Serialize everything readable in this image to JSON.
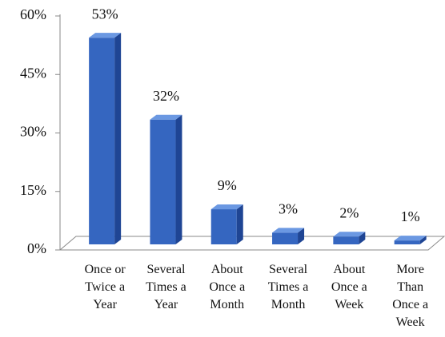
{
  "chart_data": {
    "type": "bar",
    "categories": [
      [
        "Once or",
        "Twice a",
        "Year"
      ],
      [
        "Several",
        "Times a",
        "Year"
      ],
      [
        "About",
        "Once a",
        "Month"
      ],
      [
        "Several",
        "Times a",
        "Month"
      ],
      [
        "About",
        "Once a",
        "Week"
      ],
      [
        "More",
        "Than",
        "Once a",
        "Week"
      ]
    ],
    "values": [
      53,
      32,
      9,
      3,
      2,
      1
    ],
    "value_labels": [
      "53%",
      "32%",
      "9%",
      "3%",
      "2%",
      "1%"
    ],
    "color": "#3566c0",
    "ylim": [
      0,
      60
    ],
    "yticks": [
      {
        "value": 0,
        "label": "0%"
      },
      {
        "value": 15,
        "label": "15%"
      },
      {
        "value": 30,
        "label": "30%"
      },
      {
        "value": 45,
        "label": "45%"
      },
      {
        "value": 60,
        "label": "60%"
      }
    ]
  }
}
